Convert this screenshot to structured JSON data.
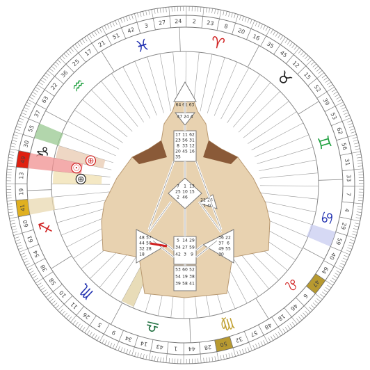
{
  "gates": [
    "41",
    "19",
    "13",
    "49",
    "30",
    "55",
    "37",
    "63",
    "22",
    "36",
    "25",
    "17",
    "21",
    "51",
    "42",
    "3",
    "27",
    "24",
    "2",
    "23",
    "8",
    "20",
    "16",
    "35",
    "45",
    "12",
    "15",
    "52",
    "39",
    "53",
    "62",
    "56",
    "31",
    "33",
    "7",
    "4",
    "29",
    "59",
    "40",
    "64",
    "47",
    "6",
    "46",
    "18",
    "48",
    "57",
    "32",
    "50",
    "28",
    "44",
    "1",
    "43",
    "14",
    "34",
    "9",
    "5",
    "26",
    "11",
    "10",
    "58",
    "38",
    "54",
    "61",
    "60"
  ],
  "signs": [
    {
      "name": "aries-sign",
      "glyph": "♈",
      "color": "#d02020"
    },
    {
      "name": "taurus-sign",
      "glyph": "♉",
      "color": "#202020"
    },
    {
      "name": "gemini-sign",
      "glyph": "♊",
      "color": "#20a040"
    },
    {
      "name": "cancer-sign",
      "glyph": "♋",
      "color": "#2030b0"
    },
    {
      "name": "leo-sign",
      "glyph": "♌",
      "color": "#d02020"
    },
    {
      "name": "virgo-sign",
      "glyph": "♍",
      "color": "#c0a030"
    },
    {
      "name": "libra-sign",
      "glyph": "♎",
      "color": "#207040"
    },
    {
      "name": "scorpio-sign",
      "glyph": "♏",
      "color": "#2030b0"
    },
    {
      "name": "sagittarius-sign",
      "glyph": "♐",
      "color": "#d02020"
    },
    {
      "name": "capricorn-sign",
      "glyph": "♑",
      "color": "#202020"
    },
    {
      "name": "aquarius-sign",
      "glyph": "♒",
      "color": "#20a040"
    },
    {
      "name": "pisces-sign",
      "glyph": "♓",
      "color": "#2030b0"
    }
  ],
  "highlights": [
    {
      "name": "gate-41-highlight",
      "gate": "41",
      "color": "#e0b020"
    },
    {
      "name": "gate-50-highlight",
      "gate": "50",
      "color": "#b89a30"
    },
    {
      "name": "gate-47-highlight",
      "gate": "47",
      "color": "#b89a30"
    },
    {
      "name": "gate-49-highlight",
      "gate": "49",
      "color": "#e02010"
    }
  ],
  "markers": [
    {
      "name": "earth-marker-design",
      "symbol": "⊕",
      "color": "#202020"
    },
    {
      "name": "earth-marker-personality",
      "symbol": "⊕",
      "color": "#d02020"
    },
    {
      "name": "sun-marker-design",
      "symbol": "☉",
      "color": "#d02020"
    },
    {
      "name": "sun-marker-personality",
      "symbol": "☉",
      "color": "#202020"
    }
  ],
  "bodygraph": {
    "head_gates": "64 61 63",
    "ajna_gates": "47 24 4",
    "throat_gates": [
      "17",
      "11",
      "62",
      "23",
      "56",
      "31",
      "8",
      "33",
      "12",
      "20",
      "45",
      "16",
      "35"
    ],
    "g_gates": [
      "7",
      "1",
      "13",
      "25",
      "10",
      "15",
      "2",
      "46"
    ],
    "sacral_gates": [
      "5",
      "14",
      "29",
      "34",
      "27",
      "59",
      "42",
      "3",
      "9"
    ],
    "root_gates": [
      "53",
      "60",
      "52",
      "54",
      "19",
      "38",
      "39",
      "58",
      "41"
    ],
    "spleen_gates": [
      "48",
      "57",
      "44",
      "50",
      "32",
      "28",
      "18"
    ],
    "solar_gates": [
      "36",
      "22",
      "37",
      "6",
      "49",
      "55",
      "30"
    ],
    "heart_gates": [
      "21",
      "26",
      "51",
      "40"
    ]
  }
}
